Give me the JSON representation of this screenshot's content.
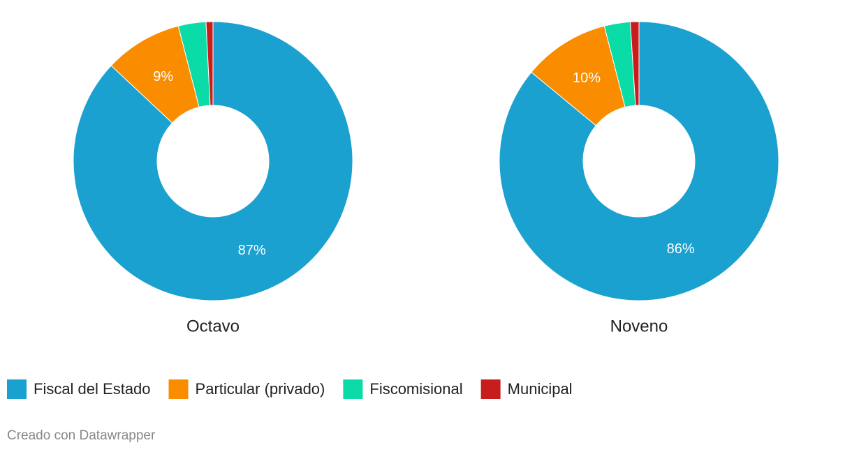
{
  "chart_data": [
    {
      "type": "pie",
      "title": "Octavo",
      "categories": [
        "Fiscal del Estado",
        "Particular (privado)",
        "Fiscomisional",
        "Municipal"
      ],
      "values": [
        87,
        9,
        3.2,
        0.8
      ],
      "value_labels": [
        "87%",
        "9%",
        null,
        null
      ],
      "colors": [
        "#1aa1cf",
        "#fa8c00",
        "#0bdba6",
        "#c71e1d"
      ]
    },
    {
      "type": "pie",
      "title": "Noveno",
      "categories": [
        "Fiscal del Estado",
        "Particular (privado)",
        "Fiscomisional",
        "Municipal"
      ],
      "values": [
        86,
        10,
        3,
        1
      ],
      "value_labels": [
        "86%",
        "10%",
        null,
        null
      ],
      "colors": [
        "#1aa1cf",
        "#fa8c00",
        "#0bdba6",
        "#c71e1d"
      ]
    }
  ],
  "footer": "Creado con Datawrapper"
}
